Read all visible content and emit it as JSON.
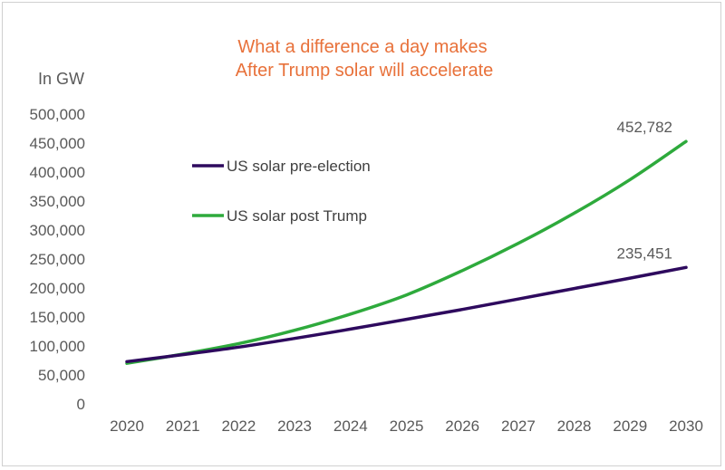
{
  "chart_data": {
    "type": "line",
    "title_lines": [
      "What a difference a day makes",
      "After Trump solar will accelerate"
    ],
    "unit_label": "In GW",
    "x": [
      "2020",
      "2021",
      "2022",
      "2023",
      "2024",
      "2025",
      "2026",
      "2027",
      "2028",
      "2029",
      "2030"
    ],
    "ylim": [
      0,
      500000
    ],
    "y_ticks": [
      0,
      50000,
      100000,
      150000,
      200000,
      250000,
      300000,
      350000,
      400000,
      450000,
      500000
    ],
    "y_tick_labels": [
      "0",
      "50,000",
      "100,000",
      "150,000",
      "200,000",
      "250,000",
      "300,000",
      "350,000",
      "400,000",
      "450,000",
      "500,000"
    ],
    "grid": false,
    "legend_position": "upper-left",
    "series": [
      {
        "name": "US solar pre-election",
        "color": "#2e0a5e",
        "values": [
          73000,
          85000,
          98000,
          113000,
          129000,
          146000,
          163000,
          181000,
          199000,
          217000,
          235451
        ],
        "end_label": "235,451"
      },
      {
        "name": "US solar post Trump",
        "color": "#2eaa3c",
        "values": [
          70000,
          86000,
          104000,
          127000,
          155000,
          188000,
          230000,
          277000,
          329000,
          387000,
          452782
        ],
        "end_label": "452,782"
      }
    ]
  }
}
